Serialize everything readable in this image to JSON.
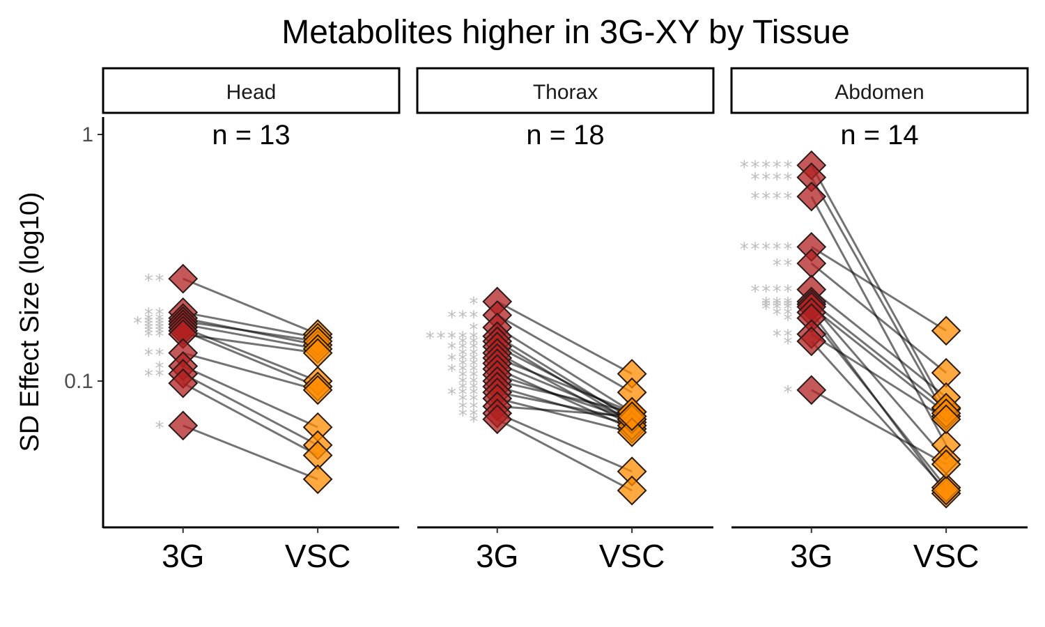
{
  "chart_data": {
    "type": "scatter",
    "title": "Metabolites higher in 3G-XY by Tissue",
    "ylabel": "SD Effect Size (log10)",
    "xlabel": "",
    "yscale": "log10",
    "ylim": [
      0.03,
      1.15
    ],
    "yticks": [
      {
        "value": 0.1,
        "label": "0.1"
      },
      {
        "value": 1,
        "label": "1"
      }
    ],
    "categories": [
      "3G",
      "VSC"
    ],
    "colors": {
      "3G": "#b22222",
      "VSC": "#ff8c00"
    },
    "marker": "diamond",
    "grid": false,
    "panels": [
      {
        "label": "Head",
        "n_label": "n = 13",
        "pairs": [
          {
            "g3": 0.26,
            "vsc": 0.155,
            "sig": "**"
          },
          {
            "g3": 0.19,
            "vsc": 0.15,
            "sig": "**"
          },
          {
            "g3": 0.18,
            "vsc": 0.14,
            "sig": "**"
          },
          {
            "g3": 0.175,
            "vsc": 0.145,
            "sig": "***"
          },
          {
            "g3": 0.17,
            "vsc": 0.135,
            "sig": "**"
          },
          {
            "g3": 0.165,
            "vsc": 0.1,
            "sig": "**"
          },
          {
            "g3": 0.16,
            "vsc": 0.095,
            "sig": "**"
          },
          {
            "g3": 0.155,
            "vsc": 0.13,
            "sig": "**"
          },
          {
            "g3": 0.13,
            "vsc": 0.092,
            "sig": "**"
          },
          {
            "g3": 0.115,
            "vsc": 0.065,
            "sig": "*"
          },
          {
            "g3": 0.107,
            "vsc": 0.055,
            "sig": "**"
          },
          {
            "g3": 0.098,
            "vsc": 0.05,
            "sig": ""
          },
          {
            "g3": 0.066,
            "vsc": 0.04,
            "sig": "*"
          }
        ]
      },
      {
        "label": "Thorax",
        "n_label": "n = 18",
        "pairs": [
          {
            "g3": 0.21,
            "vsc": 0.107,
            "sig": "*"
          },
          {
            "g3": 0.185,
            "vsc": 0.09,
            "sig": "***"
          },
          {
            "g3": 0.165,
            "vsc": 0.075,
            "sig": "*"
          },
          {
            "g3": 0.152,
            "vsc": 0.07,
            "sig": "*****"
          },
          {
            "g3": 0.145,
            "vsc": 0.068,
            "sig": "**"
          },
          {
            "g3": 0.138,
            "vsc": 0.072,
            "sig": "***"
          },
          {
            "g3": 0.13,
            "vsc": 0.066,
            "sig": "**"
          },
          {
            "g3": 0.124,
            "vsc": 0.075,
            "sig": "***"
          },
          {
            "g3": 0.118,
            "vsc": 0.07,
            "sig": "**"
          },
          {
            "g3": 0.112,
            "vsc": 0.064,
            "sig": "***"
          },
          {
            "g3": 0.106,
            "vsc": 0.07,
            "sig": "**"
          },
          {
            "g3": 0.1,
            "vsc": 0.075,
            "sig": "**"
          },
          {
            "g3": 0.095,
            "vsc": 0.066,
            "sig": "**"
          },
          {
            "g3": 0.09,
            "vsc": 0.07,
            "sig": "***"
          },
          {
            "g3": 0.085,
            "vsc": 0.062,
            "sig": "**"
          },
          {
            "g3": 0.079,
            "vsc": 0.072,
            "sig": "**"
          },
          {
            "g3": 0.074,
            "vsc": 0.043,
            "sig": "**"
          },
          {
            "g3": 0.07,
            "vsc": 0.036,
            "sig": "*"
          }
        ]
      },
      {
        "label": "Abdomen",
        "n_label": "n = 14",
        "pairs": [
          {
            "g3": 0.75,
            "vsc": 0.077,
            "sig": "*****"
          },
          {
            "g3": 0.67,
            "vsc": 0.072,
            "sig": "****"
          },
          {
            "g3": 0.56,
            "vsc": 0.055,
            "sig": "****"
          },
          {
            "g3": 0.35,
            "vsc": 0.16,
            "sig": "*****"
          },
          {
            "g3": 0.3,
            "vsc": 0.108,
            "sig": "**"
          },
          {
            "g3": 0.235,
            "vsc": 0.086,
            "sig": "****"
          },
          {
            "g3": 0.21,
            "vsc": 0.078,
            "sig": "***"
          },
          {
            "g3": 0.205,
            "vsc": 0.048,
            "sig": "***"
          },
          {
            "g3": 0.2,
            "vsc": 0.074,
            "sig": "***"
          },
          {
            "g3": 0.19,
            "vsc": 0.035,
            "sig": "**"
          },
          {
            "g3": 0.18,
            "vsc": 0.037,
            "sig": "*"
          },
          {
            "g3": 0.155,
            "vsc": 0.07,
            "sig": "**"
          },
          {
            "g3": 0.145,
            "vsc": 0.036,
            "sig": "*"
          },
          {
            "g3": 0.092,
            "vsc": 0.046,
            "sig": "*"
          }
        ]
      }
    ]
  }
}
